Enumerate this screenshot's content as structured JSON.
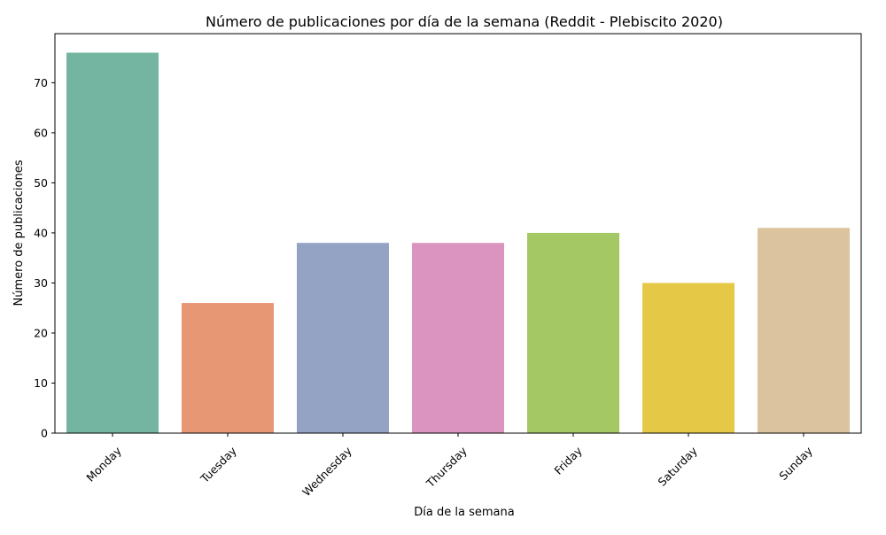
{
  "chart_data": {
    "type": "bar",
    "title": "Número de publicaciones por día de la semana (Reddit - Plebiscito 2020)",
    "xlabel": "Día de la semana",
    "ylabel": "Número de publicaciones",
    "categories": [
      "Monday",
      "Tuesday",
      "Wednesday",
      "Thursday",
      "Friday",
      "Saturday",
      "Sunday"
    ],
    "values": [
      76,
      26,
      38,
      38,
      40,
      30,
      41
    ],
    "colors": [
      "#73b5a0",
      "#e89774",
      "#94a3c3",
      "#db94bf",
      "#a3c864",
      "#e5c946",
      "#dbc39d"
    ],
    "ylim": [
      0,
      79.8
    ],
    "yticks": [
      0,
      10,
      20,
      30,
      40,
      50,
      60,
      70
    ],
    "grid": false,
    "legend": "none",
    "xtick_rotation": 45
  }
}
